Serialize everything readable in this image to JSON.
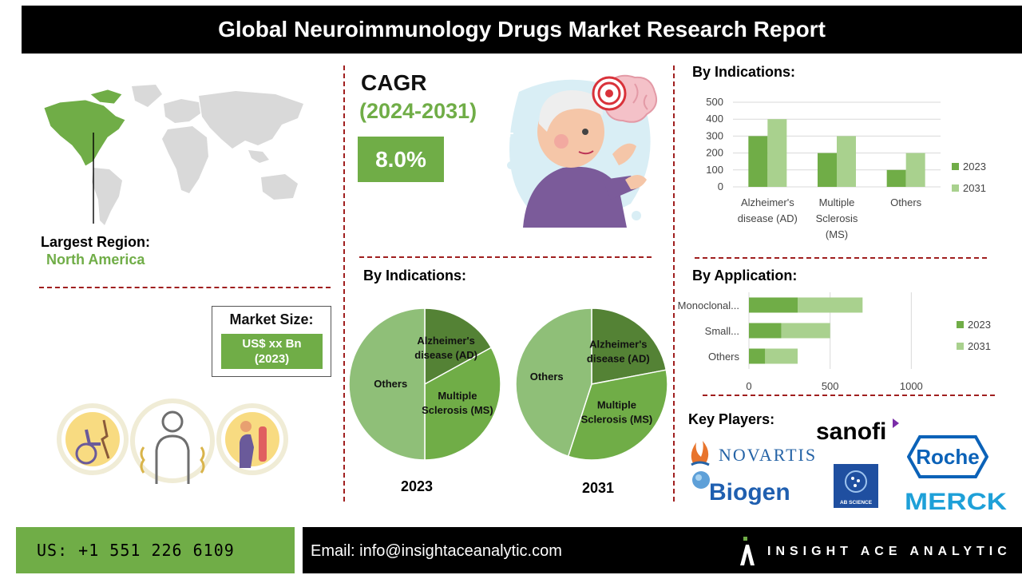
{
  "header": {
    "title": "Global Neuroimmunology Drugs Market Research Report"
  },
  "region": {
    "label": "Largest Region:",
    "value": "North America"
  },
  "cagr": {
    "title": "CAGR",
    "years": "(2024-2031)",
    "value": "8.0%"
  },
  "market_size": {
    "label": "Market Size:",
    "value": "US$ xx Bn",
    "year": "(2023)"
  },
  "sections": {
    "indications_pies": "By Indications:",
    "indications_bars": "By Indications:",
    "application": "By Application:",
    "key_players": "Key Players:"
  },
  "players": {
    "novartis": "NOVARTIS",
    "sanofi": "sanofi",
    "roche": "Roche",
    "biogen": "Biogen",
    "ab_science": "AB SCIENCE",
    "merck": "MERCK"
  },
  "footer": {
    "phone": "US: +1 551 226 6109",
    "email": "Email: info@insightaceanalytic.com",
    "brand": "INSIGHT ACE ANALYTIC"
  },
  "colors": {
    "dark_green": "#548235",
    "mid_green": "#70ad47",
    "light_green": "#a9d18e",
    "pie_others": "#8fbf78",
    "divider": "#a01f1f"
  },
  "chart_data": [
    {
      "type": "bar",
      "title": "By Indications:",
      "categories": [
        "Alzheimer's disease (AD)",
        "Multiple Sclerosis (MS)",
        "Others"
      ],
      "category_lines": [
        [
          "Alzheimer's",
          "disease (AD)"
        ],
        [
          "Multiple",
          "Sclerosis",
          "(MS)"
        ],
        [
          "Others"
        ]
      ],
      "series": [
        {
          "name": "2023",
          "values": [
            300,
            200,
            100
          ]
        },
        {
          "name": "2031",
          "values": [
            400,
            300,
            200
          ]
        }
      ],
      "ylim": [
        0,
        500
      ],
      "yticks": [
        0,
        100,
        200,
        300,
        400,
        500
      ],
      "grid": true,
      "legend": "right"
    },
    {
      "type": "bar",
      "orientation": "horizontal",
      "stacked": true,
      "title": "By Application:",
      "categories": [
        "Monoclonal...",
        "Small...",
        "Others"
      ],
      "series": [
        {
          "name": "2023",
          "values": [
            300,
            200,
            100
          ]
        },
        {
          "name": "2031",
          "values": [
            400,
            300,
            200
          ]
        }
      ],
      "xlim": [
        0,
        1200
      ],
      "xticks": [
        0,
        500,
        1000
      ],
      "grid": true,
      "legend": "right"
    },
    {
      "type": "pie",
      "title": "2023",
      "slices": [
        {
          "label": "Alzheimer's disease (AD)",
          "lines": [
            "Alzheimer's",
            "disease (AD)"
          ],
          "value": 17
        },
        {
          "label": "Multiple Sclerosis (MS)",
          "lines": [
            "Multiple",
            "Sclerosis (MS)"
          ],
          "value": 33
        },
        {
          "label": "Others",
          "lines": [
            "Others"
          ],
          "value": 50
        }
      ]
    },
    {
      "type": "pie",
      "title": "2031",
      "slices": [
        {
          "label": "Alzheimer's disease (AD)",
          "lines": [
            "Alzheimer's",
            "disease (AD)"
          ],
          "value": 22
        },
        {
          "label": "Multiple Sclerosis (MS)",
          "lines": [
            "Multiple",
            "Sclerosis (MS)"
          ],
          "value": 33
        },
        {
          "label": "Others",
          "lines": [
            "Others"
          ],
          "value": 45
        }
      ]
    }
  ]
}
